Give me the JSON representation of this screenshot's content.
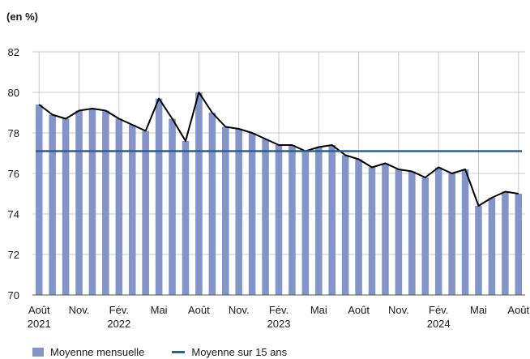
{
  "unit_label": "(en %)",
  "colors": {
    "bars": "#8494c8",
    "monthly_line": "#000000",
    "avg15_line": "#2d5f8b",
    "grid": "#c9c9c9"
  },
  "legend": {
    "bars_label": "Moyenne mensuelle",
    "avg_label": "Moyenne sur 15 ans"
  },
  "chart_data": {
    "type": "bar",
    "ylim": [
      70,
      82
    ],
    "yticks": [
      70,
      72,
      74,
      76,
      78,
      80,
      82
    ],
    "grid": true,
    "legend_position": "bottom",
    "categories": [
      "2021-08",
      "2021-09",
      "2021-10",
      "2021-11",
      "2021-12",
      "2022-01",
      "2022-02",
      "2022-03",
      "2022-04",
      "2022-05",
      "2022-06",
      "2022-07",
      "2022-08",
      "2022-09",
      "2022-10",
      "2022-11",
      "2022-12",
      "2023-01",
      "2023-02",
      "2023-03",
      "2023-04",
      "2023-05",
      "2023-06",
      "2023-07",
      "2023-08",
      "2023-09",
      "2023-10",
      "2023-11",
      "2023-12",
      "2024-01",
      "2024-02",
      "2024-03",
      "2024-04",
      "2024-05",
      "2024-06",
      "2024-07",
      "2024-08"
    ],
    "x_tick_labels": [
      {
        "index": 0,
        "line1": "Août",
        "line2": "2021"
      },
      {
        "index": 3,
        "line1": "Nov.",
        "line2": ""
      },
      {
        "index": 6,
        "line1": "Fév.",
        "line2": "2022"
      },
      {
        "index": 9,
        "line1": "Mai",
        "line2": ""
      },
      {
        "index": 12,
        "line1": "Août",
        "line2": ""
      },
      {
        "index": 15,
        "line1": "Nov.",
        "line2": ""
      },
      {
        "index": 18,
        "line1": "Fév.",
        "line2": "2023"
      },
      {
        "index": 21,
        "line1": "Mai",
        "line2": ""
      },
      {
        "index": 24,
        "line1": "Août",
        "line2": ""
      },
      {
        "index": 27,
        "line1": "Nov.",
        "line2": ""
      },
      {
        "index": 30,
        "line1": "Fév.",
        "line2": "2024"
      },
      {
        "index": 33,
        "line1": "Mai",
        "line2": ""
      },
      {
        "index": 36,
        "line1": "Août",
        "line2": ""
      }
    ],
    "series": [
      {
        "name": "Moyenne mensuelle",
        "kind": "bar+line",
        "values": [
          79.4,
          78.9,
          78.7,
          79.1,
          79.2,
          79.1,
          78.7,
          78.4,
          78.1,
          79.7,
          78.7,
          77.6,
          80.0,
          79.0,
          78.3,
          78.2,
          78.0,
          77.7,
          77.4,
          77.4,
          77.1,
          77.3,
          77.4,
          76.9,
          76.7,
          76.3,
          76.5,
          76.2,
          76.1,
          75.8,
          76.3,
          76.0,
          76.2,
          74.4,
          74.8,
          75.1,
          75.0
        ]
      },
      {
        "name": "Moyenne sur 15 ans",
        "kind": "hline",
        "value": 77.1
      }
    ]
  }
}
